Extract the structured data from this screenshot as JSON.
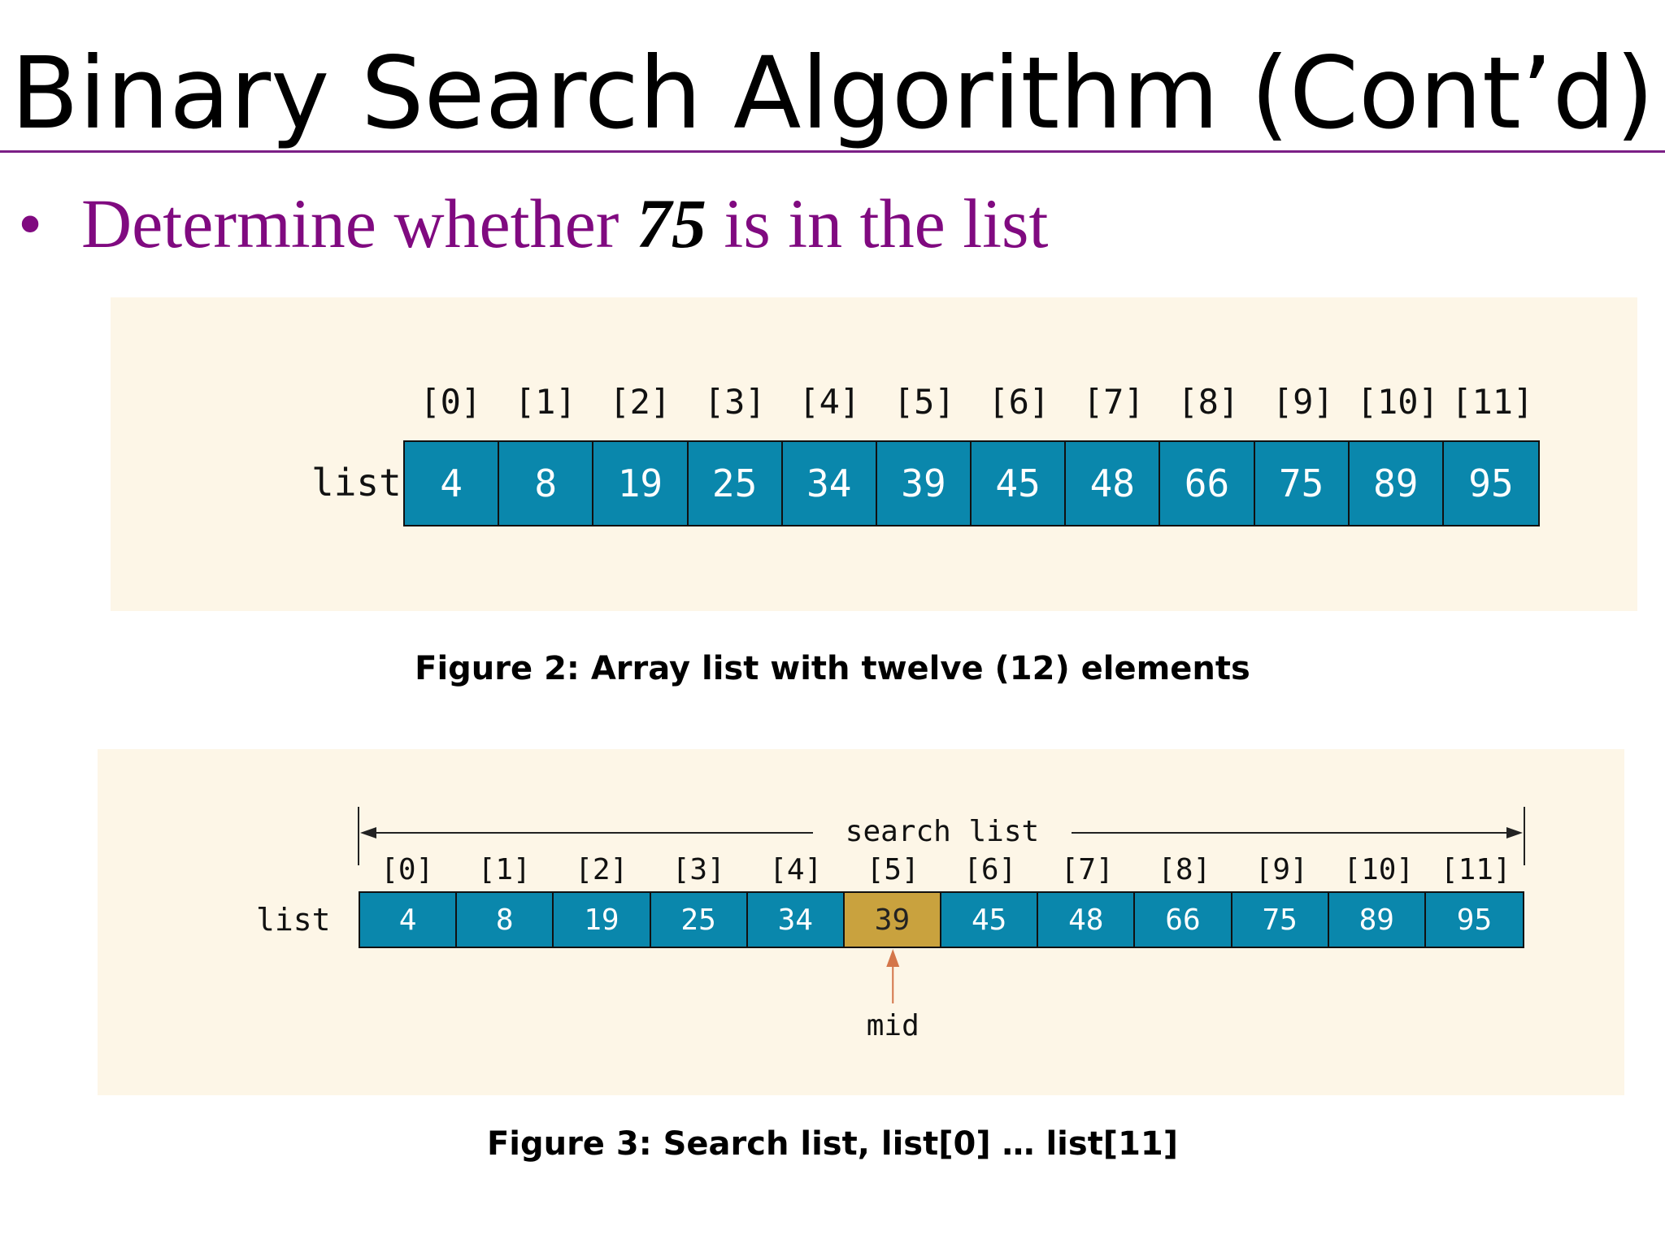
{
  "slide": {
    "title": "Binary Search Algorithm (Cont’d)",
    "bullet": {
      "prefix": "Determine whether",
      "value": "75",
      "suffix": "is in the list"
    }
  },
  "figure2": {
    "array_label": "list",
    "indices": [
      "[0]",
      "[1]",
      "[2]",
      "[3]",
      "[4]",
      "[5]",
      "[6]",
      "[7]",
      "[8]",
      "[9]",
      "[10]",
      "[11]"
    ],
    "values": [
      "4",
      "8",
      "19",
      "25",
      "34",
      "39",
      "45",
      "48",
      "66",
      "75",
      "89",
      "95"
    ],
    "caption": "Figure 2: Array list with twelve (12) elements"
  },
  "figure3": {
    "array_label": "list",
    "span_label": "search list",
    "indices": [
      "[0]",
      "[1]",
      "[2]",
      "[3]",
      "[4]",
      "[5]",
      "[6]",
      "[7]",
      "[8]",
      "[9]",
      "[10]",
      "[11]"
    ],
    "values": [
      "4",
      "8",
      "19",
      "25",
      "34",
      "39",
      "45",
      "48",
      "66",
      "75",
      "89",
      "95"
    ],
    "mid_index": 5,
    "mid_label": "mid",
    "caption": "Figure 3: Search list, list[0] … list[11]"
  },
  "colors": {
    "cell": "#0a87ac",
    "mid_cell": "#c9a23e",
    "mid_arrow": "#d4764a",
    "bullet": "#800a80",
    "rule": "#7b1f86",
    "panel": "#fdf6e7"
  }
}
